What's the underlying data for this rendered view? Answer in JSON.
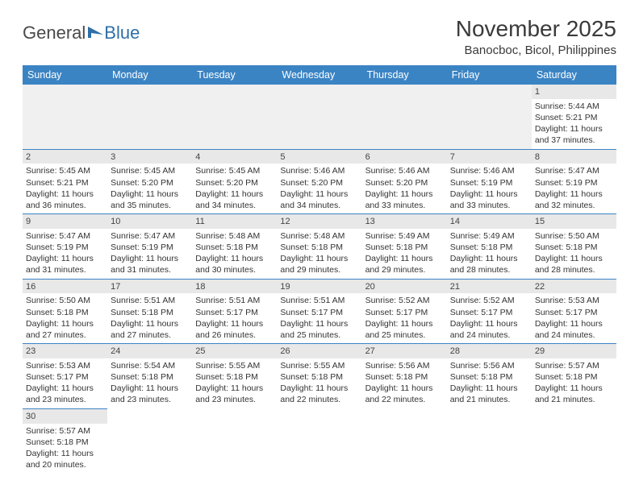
{
  "brand": {
    "part1": "General",
    "part2": "Blue"
  },
  "title": "November 2025",
  "location": "Banocboc, Bicol, Philippines",
  "colors": {
    "header_bg": "#3b84c4",
    "header_text": "#ffffff",
    "daynum_bg": "#e8e8e8",
    "border": "#3b84c4",
    "text": "#333333",
    "brand_gray": "#4a4a4a",
    "brand_blue": "#2f6fa8"
  },
  "weekdays": [
    "Sunday",
    "Monday",
    "Tuesday",
    "Wednesday",
    "Thursday",
    "Friday",
    "Saturday"
  ],
  "weeks": [
    [
      {
        "blank": true
      },
      {
        "blank": true
      },
      {
        "blank": true
      },
      {
        "blank": true
      },
      {
        "blank": true
      },
      {
        "blank": true
      },
      {
        "n": "1",
        "sunrise": "Sunrise: 5:44 AM",
        "sunset": "Sunset: 5:21 PM",
        "day1": "Daylight: 11 hours",
        "day2": "and 37 minutes."
      }
    ],
    [
      {
        "n": "2",
        "sunrise": "Sunrise: 5:45 AM",
        "sunset": "Sunset: 5:21 PM",
        "day1": "Daylight: 11 hours",
        "day2": "and 36 minutes."
      },
      {
        "n": "3",
        "sunrise": "Sunrise: 5:45 AM",
        "sunset": "Sunset: 5:20 PM",
        "day1": "Daylight: 11 hours",
        "day2": "and 35 minutes."
      },
      {
        "n": "4",
        "sunrise": "Sunrise: 5:45 AM",
        "sunset": "Sunset: 5:20 PM",
        "day1": "Daylight: 11 hours",
        "day2": "and 34 minutes."
      },
      {
        "n": "5",
        "sunrise": "Sunrise: 5:46 AM",
        "sunset": "Sunset: 5:20 PM",
        "day1": "Daylight: 11 hours",
        "day2": "and 34 minutes."
      },
      {
        "n": "6",
        "sunrise": "Sunrise: 5:46 AM",
        "sunset": "Sunset: 5:20 PM",
        "day1": "Daylight: 11 hours",
        "day2": "and 33 minutes."
      },
      {
        "n": "7",
        "sunrise": "Sunrise: 5:46 AM",
        "sunset": "Sunset: 5:19 PM",
        "day1": "Daylight: 11 hours",
        "day2": "and 33 minutes."
      },
      {
        "n": "8",
        "sunrise": "Sunrise: 5:47 AM",
        "sunset": "Sunset: 5:19 PM",
        "day1": "Daylight: 11 hours",
        "day2": "and 32 minutes."
      }
    ],
    [
      {
        "n": "9",
        "sunrise": "Sunrise: 5:47 AM",
        "sunset": "Sunset: 5:19 PM",
        "day1": "Daylight: 11 hours",
        "day2": "and 31 minutes."
      },
      {
        "n": "10",
        "sunrise": "Sunrise: 5:47 AM",
        "sunset": "Sunset: 5:19 PM",
        "day1": "Daylight: 11 hours",
        "day2": "and 31 minutes."
      },
      {
        "n": "11",
        "sunrise": "Sunrise: 5:48 AM",
        "sunset": "Sunset: 5:18 PM",
        "day1": "Daylight: 11 hours",
        "day2": "and 30 minutes."
      },
      {
        "n": "12",
        "sunrise": "Sunrise: 5:48 AM",
        "sunset": "Sunset: 5:18 PM",
        "day1": "Daylight: 11 hours",
        "day2": "and 29 minutes."
      },
      {
        "n": "13",
        "sunrise": "Sunrise: 5:49 AM",
        "sunset": "Sunset: 5:18 PM",
        "day1": "Daylight: 11 hours",
        "day2": "and 29 minutes."
      },
      {
        "n": "14",
        "sunrise": "Sunrise: 5:49 AM",
        "sunset": "Sunset: 5:18 PM",
        "day1": "Daylight: 11 hours",
        "day2": "and 28 minutes."
      },
      {
        "n": "15",
        "sunrise": "Sunrise: 5:50 AM",
        "sunset": "Sunset: 5:18 PM",
        "day1": "Daylight: 11 hours",
        "day2": "and 28 minutes."
      }
    ],
    [
      {
        "n": "16",
        "sunrise": "Sunrise: 5:50 AM",
        "sunset": "Sunset: 5:18 PM",
        "day1": "Daylight: 11 hours",
        "day2": "and 27 minutes."
      },
      {
        "n": "17",
        "sunrise": "Sunrise: 5:51 AM",
        "sunset": "Sunset: 5:18 PM",
        "day1": "Daylight: 11 hours",
        "day2": "and 27 minutes."
      },
      {
        "n": "18",
        "sunrise": "Sunrise: 5:51 AM",
        "sunset": "Sunset: 5:17 PM",
        "day1": "Daylight: 11 hours",
        "day2": "and 26 minutes."
      },
      {
        "n": "19",
        "sunrise": "Sunrise: 5:51 AM",
        "sunset": "Sunset: 5:17 PM",
        "day1": "Daylight: 11 hours",
        "day2": "and 25 minutes."
      },
      {
        "n": "20",
        "sunrise": "Sunrise: 5:52 AM",
        "sunset": "Sunset: 5:17 PM",
        "day1": "Daylight: 11 hours",
        "day2": "and 25 minutes."
      },
      {
        "n": "21",
        "sunrise": "Sunrise: 5:52 AM",
        "sunset": "Sunset: 5:17 PM",
        "day1": "Daylight: 11 hours",
        "day2": "and 24 minutes."
      },
      {
        "n": "22",
        "sunrise": "Sunrise: 5:53 AM",
        "sunset": "Sunset: 5:17 PM",
        "day1": "Daylight: 11 hours",
        "day2": "and 24 minutes."
      }
    ],
    [
      {
        "n": "23",
        "sunrise": "Sunrise: 5:53 AM",
        "sunset": "Sunset: 5:17 PM",
        "day1": "Daylight: 11 hours",
        "day2": "and 23 minutes."
      },
      {
        "n": "24",
        "sunrise": "Sunrise: 5:54 AM",
        "sunset": "Sunset: 5:18 PM",
        "day1": "Daylight: 11 hours",
        "day2": "and 23 minutes."
      },
      {
        "n": "25",
        "sunrise": "Sunrise: 5:55 AM",
        "sunset": "Sunset: 5:18 PM",
        "day1": "Daylight: 11 hours",
        "day2": "and 23 minutes."
      },
      {
        "n": "26",
        "sunrise": "Sunrise: 5:55 AM",
        "sunset": "Sunset: 5:18 PM",
        "day1": "Daylight: 11 hours",
        "day2": "and 22 minutes."
      },
      {
        "n": "27",
        "sunrise": "Sunrise: 5:56 AM",
        "sunset": "Sunset: 5:18 PM",
        "day1": "Daylight: 11 hours",
        "day2": "and 22 minutes."
      },
      {
        "n": "28",
        "sunrise": "Sunrise: 5:56 AM",
        "sunset": "Sunset: 5:18 PM",
        "day1": "Daylight: 11 hours",
        "day2": "and 21 minutes."
      },
      {
        "n": "29",
        "sunrise": "Sunrise: 5:57 AM",
        "sunset": "Sunset: 5:18 PM",
        "day1": "Daylight: 11 hours",
        "day2": "and 21 minutes."
      }
    ],
    [
      {
        "n": "30",
        "sunrise": "Sunrise: 5:57 AM",
        "sunset": "Sunset: 5:18 PM",
        "day1": "Daylight: 11 hours",
        "day2": "and 20 minutes."
      },
      {
        "blank": true
      },
      {
        "blank": true
      },
      {
        "blank": true
      },
      {
        "blank": true
      },
      {
        "blank": true
      },
      {
        "blank": true
      }
    ]
  ]
}
